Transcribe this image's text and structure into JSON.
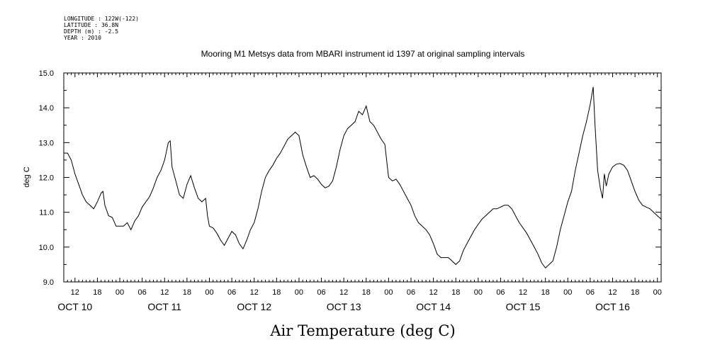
{
  "header": {
    "longitude": "LONGITUDE : 122W(-122)",
    "latitude": "LATITUDE : 36.8N",
    "depth": "DEPTH (m) : -2.5",
    "year": "YEAR : 2010"
  },
  "chart_data": {
    "type": "line",
    "title": "Mooring M1 Metsys data from MBARI instrument id 1397 at original sampling intervals",
    "xlabel": "Air Temperature (deg C)",
    "ylabel": "deg C",
    "ylim": [
      9.0,
      15.0
    ],
    "yticks": [
      "9.0",
      "10.0",
      "11.0",
      "12.0",
      "13.0",
      "14.0",
      "15.0"
    ],
    "xlim_hours": [
      225,
      385
    ],
    "hour_tick_labels": [
      "06",
      "12",
      "18",
      "00"
    ],
    "day_labels": [
      "OCT 10",
      "OCT 11",
      "OCT 12",
      "OCT 13",
      "OCT 14",
      "OCT 15",
      "OCT 16"
    ],
    "grid": false,
    "series": [
      {
        "points": [
          [
            225.0,
            12.7
          ],
          [
            226.0,
            12.7
          ],
          [
            227.0,
            12.5
          ],
          [
            228.0,
            12.1
          ],
          [
            229.0,
            11.8
          ],
          [
            230.0,
            11.5
          ],
          [
            231.0,
            11.3
          ],
          [
            232.0,
            11.2
          ],
          [
            233.0,
            11.1
          ],
          [
            234.0,
            11.3
          ],
          [
            235.0,
            11.55
          ],
          [
            235.5,
            11.6
          ],
          [
            236.0,
            11.2
          ],
          [
            237.0,
            10.9
          ],
          [
            238.0,
            10.85
          ],
          [
            239.0,
            10.6
          ],
          [
            240.0,
            10.6
          ],
          [
            241.0,
            10.6
          ],
          [
            242.0,
            10.7
          ],
          [
            243.0,
            10.5
          ],
          [
            244.0,
            10.75
          ],
          [
            245.0,
            10.9
          ],
          [
            246.0,
            11.15
          ],
          [
            247.0,
            11.3
          ],
          [
            248.0,
            11.45
          ],
          [
            249.0,
            11.7
          ],
          [
            250.0,
            12.0
          ],
          [
            251.0,
            12.2
          ],
          [
            252.0,
            12.5
          ],
          [
            253.0,
            13.0
          ],
          [
            253.5,
            13.05
          ],
          [
            254.0,
            12.3
          ],
          [
            255.0,
            11.9
          ],
          [
            256.0,
            11.5
          ],
          [
            257.0,
            11.4
          ],
          [
            258.0,
            11.8
          ],
          [
            259.0,
            12.05
          ],
          [
            260.0,
            11.7
          ],
          [
            261.0,
            11.4
          ],
          [
            262.0,
            11.3
          ],
          [
            263.0,
            11.4
          ],
          [
            263.5,
            10.9
          ],
          [
            264.0,
            10.6
          ],
          [
            265.0,
            10.55
          ],
          [
            266.0,
            10.4
          ],
          [
            267.0,
            10.2
          ],
          [
            268.0,
            10.05
          ],
          [
            269.0,
            10.25
          ],
          [
            270.0,
            10.45
          ],
          [
            271.0,
            10.35
          ],
          [
            272.0,
            10.1
          ],
          [
            273.0,
            9.95
          ],
          [
            274.0,
            10.2
          ],
          [
            275.0,
            10.5
          ],
          [
            276.0,
            10.7
          ],
          [
            277.0,
            11.1
          ],
          [
            278.0,
            11.6
          ],
          [
            279.0,
            12.0
          ],
          [
            280.0,
            12.2
          ],
          [
            281.0,
            12.35
          ],
          [
            282.0,
            12.55
          ],
          [
            283.0,
            12.7
          ],
          [
            284.0,
            12.9
          ],
          [
            285.0,
            13.1
          ],
          [
            286.0,
            13.2
          ],
          [
            287.0,
            13.3
          ],
          [
            288.0,
            13.2
          ],
          [
            289.0,
            12.65
          ],
          [
            290.0,
            12.3
          ],
          [
            291.0,
            12.0
          ],
          [
            292.0,
            12.05
          ],
          [
            293.0,
            11.95
          ],
          [
            294.0,
            11.8
          ],
          [
            295.0,
            11.7
          ],
          [
            296.0,
            11.75
          ],
          [
            297.0,
            11.9
          ],
          [
            298.0,
            12.3
          ],
          [
            299.0,
            12.8
          ],
          [
            300.0,
            13.2
          ],
          [
            301.0,
            13.4
          ],
          [
            302.0,
            13.5
          ],
          [
            303.0,
            13.6
          ],
          [
            304.0,
            13.9
          ],
          [
            305.0,
            13.8
          ],
          [
            306.0,
            14.05
          ],
          [
            307.0,
            13.6
          ],
          [
            308.0,
            13.5
          ],
          [
            309.0,
            13.3
          ],
          [
            310.0,
            13.1
          ],
          [
            311.0,
            12.95
          ],
          [
            312.0,
            12.0
          ],
          [
            313.0,
            11.9
          ],
          [
            314.0,
            11.95
          ],
          [
            315.0,
            11.8
          ],
          [
            316.0,
            11.6
          ],
          [
            317.0,
            11.4
          ],
          [
            318.0,
            11.2
          ],
          [
            319.0,
            10.9
          ],
          [
            320.0,
            10.7
          ],
          [
            321.0,
            10.6
          ],
          [
            322.0,
            10.5
          ],
          [
            323.0,
            10.35
          ],
          [
            324.0,
            10.1
          ],
          [
            325.0,
            9.8
          ],
          [
            326.0,
            9.7
          ],
          [
            327.0,
            9.7
          ],
          [
            328.0,
            9.7
          ],
          [
            329.0,
            9.6
          ],
          [
            330.0,
            9.5
          ],
          [
            331.0,
            9.6
          ],
          [
            332.0,
            9.9
          ],
          [
            333.0,
            10.1
          ],
          [
            334.0,
            10.3
          ],
          [
            335.0,
            10.5
          ],
          [
            336.0,
            10.65
          ],
          [
            337.0,
            10.8
          ],
          [
            338.0,
            10.9
          ],
          [
            339.0,
            11.0
          ],
          [
            340.0,
            11.1
          ],
          [
            341.0,
            11.1
          ],
          [
            342.0,
            11.15
          ],
          [
            343.0,
            11.2
          ],
          [
            344.0,
            11.2
          ],
          [
            345.0,
            11.1
          ],
          [
            346.0,
            10.9
          ],
          [
            347.0,
            10.7
          ],
          [
            348.0,
            10.55
          ],
          [
            349.0,
            10.4
          ],
          [
            350.0,
            10.2
          ],
          [
            351.0,
            10.0
          ],
          [
            352.0,
            9.8
          ],
          [
            353.0,
            9.55
          ],
          [
            354.0,
            9.4
          ],
          [
            355.0,
            9.5
          ],
          [
            356.0,
            9.6
          ],
          [
            357.0,
            10.0
          ],
          [
            358.0,
            10.5
          ],
          [
            359.0,
            10.9
          ],
          [
            360.0,
            11.3
          ],
          [
            361.0,
            11.6
          ],
          [
            362.0,
            12.2
          ],
          [
            363.0,
            12.7
          ],
          [
            364.0,
            13.2
          ],
          [
            365.0,
            13.6
          ],
          [
            366.0,
            14.1
          ],
          [
            366.8,
            14.6
          ],
          [
            367.3,
            13.5
          ],
          [
            368.0,
            12.2
          ],
          [
            368.7,
            11.7
          ],
          [
            369.3,
            11.4
          ],
          [
            369.8,
            12.1
          ],
          [
            370.3,
            11.75
          ],
          [
            371.0,
            12.1
          ],
          [
            372.0,
            12.3
          ],
          [
            373.0,
            12.38
          ],
          [
            374.0,
            12.4
          ],
          [
            375.0,
            12.35
          ],
          [
            376.0,
            12.2
          ],
          [
            377.0,
            11.9
          ],
          [
            378.0,
            11.6
          ],
          [
            379.0,
            11.35
          ],
          [
            380.0,
            11.2
          ],
          [
            381.0,
            11.15
          ],
          [
            382.0,
            11.1
          ],
          [
            383.0,
            11.0
          ],
          [
            384.0,
            10.9
          ],
          [
            385.0,
            10.8
          ]
        ]
      }
    ]
  }
}
